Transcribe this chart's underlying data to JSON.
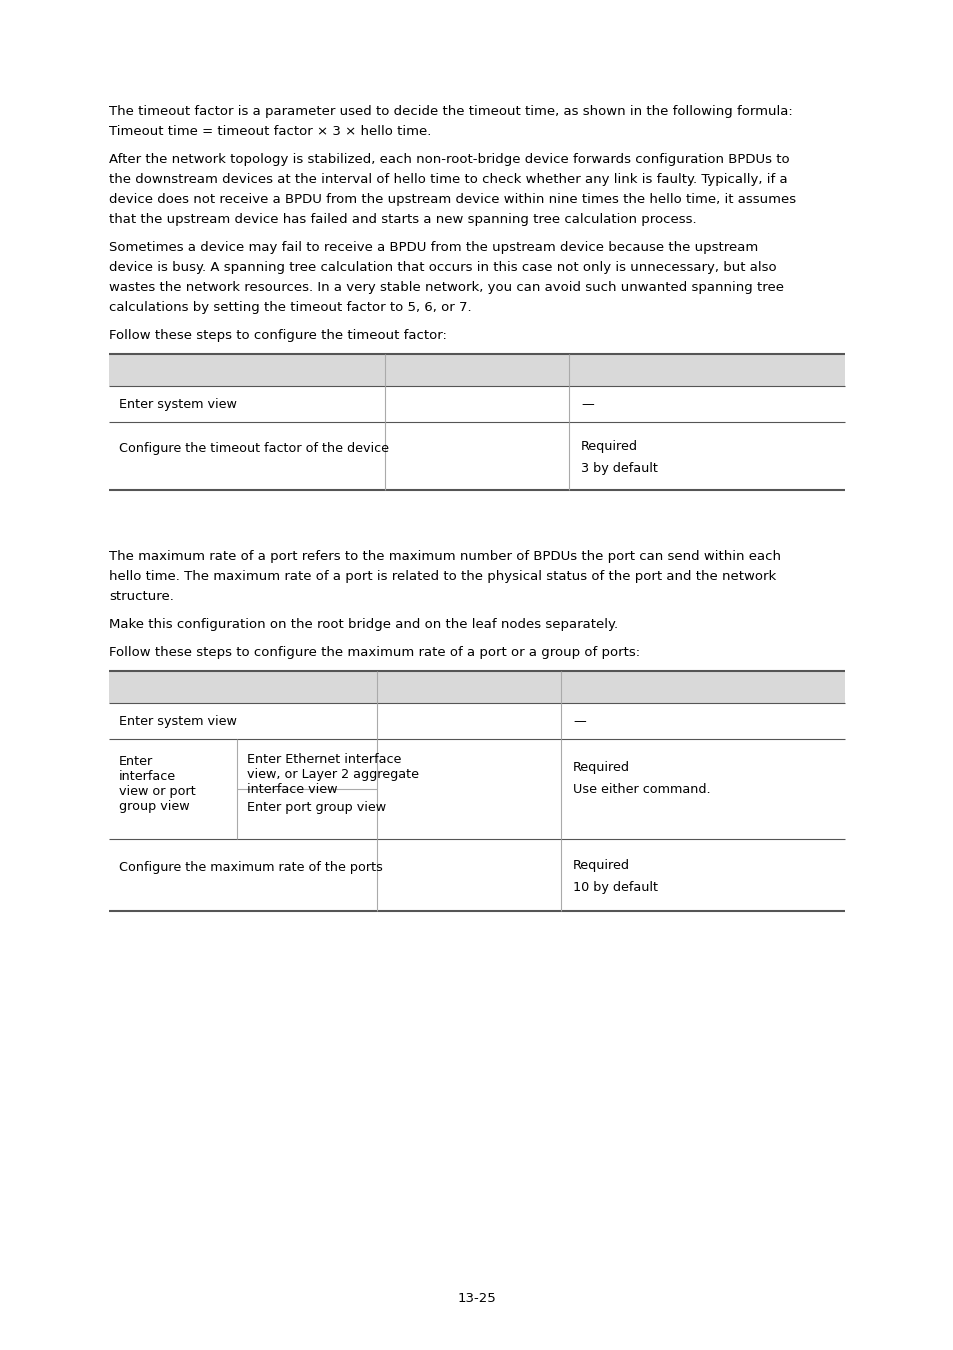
{
  "page_background": "#ffffff",
  "text_color": "#000000",
  "header_bg": "#d9d9d9",
  "table_line_color": "#aaaaaa",
  "table_border_color": "#555555",
  "font_size_body": 9.5,
  "font_size_table": 9.2,
  "font_size_footer": 9.5,
  "para1_lines": [
    "The timeout factor is a parameter used to decide the timeout time, as shown in the following formula:",
    "Timeout time = timeout factor × 3 × hello time."
  ],
  "para2_lines": [
    "After the network topology is stabilized, each non-root-bridge device forwards configuration BPDUs to",
    "the downstream devices at the interval of hello time to check whether any link is faulty. Typically, if a",
    "device does not receive a BPDU from the upstream device within nine times the hello time, it assumes",
    "that the upstream device has failed and starts a new spanning tree calculation process."
  ],
  "para3_lines": [
    "Sometimes a device may fail to receive a BPDU from the upstream device because the upstream",
    "device is busy. A spanning tree calculation that occurs in this case not only is unnecessary, but also",
    "wastes the network resources. In a very stable network, you can avoid such unwanted spanning tree",
    "calculations by setting the timeout factor to 5, 6, or 7."
  ],
  "table1_intro": "Follow these steps to configure the timeout factor:",
  "section2_para1_lines": [
    "The maximum rate of a port refers to the maximum number of BPDUs the port can send within each",
    "hello time. The maximum rate of a port is related to the physical status of the port and the network",
    "structure."
  ],
  "section2_para2": "Make this configuration on the root bridge and on the leaf nodes separately.",
  "section2_para3": "Follow these steps to configure the maximum rate of a port or a group of ports:",
  "footer_text": "13-25"
}
